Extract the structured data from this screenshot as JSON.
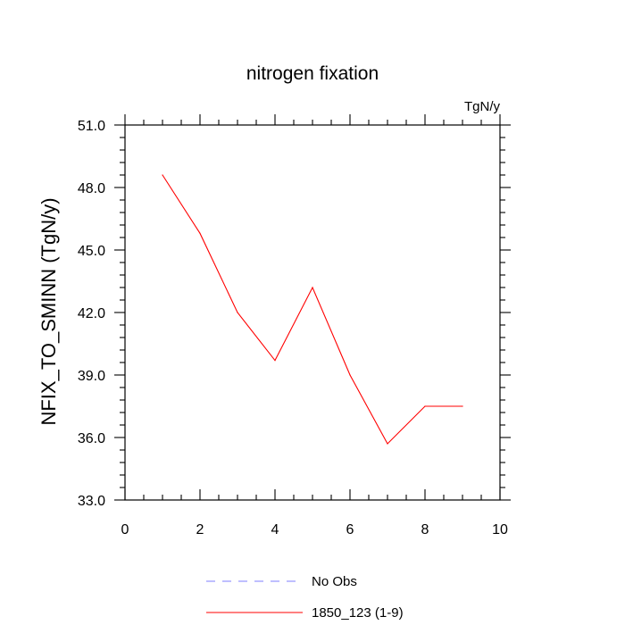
{
  "chart_data": {
    "type": "line",
    "title": "nitrogen fixation",
    "units_label": "TgN/y",
    "ylabel": "NFIX_TO_SMINN  (TgN/y)",
    "xlabel": "",
    "xlim": [
      0,
      10
    ],
    "ylim": [
      33,
      51
    ],
    "x_ticks": [
      0,
      2,
      4,
      6,
      8,
      10
    ],
    "x_tick_labels": [
      "0",
      "2",
      "4",
      "6",
      "8",
      "10"
    ],
    "y_ticks": [
      33,
      36,
      39,
      42,
      45,
      48,
      51
    ],
    "y_tick_labels": [
      "33.0",
      "36.0",
      "39.0",
      "42.0",
      "45.0",
      "48.0",
      "51.0"
    ],
    "grid": false,
    "legend_position": "bottom-center",
    "series": [
      {
        "name": "No Obs",
        "color": "#7f7fff",
        "dashed": true,
        "x": [],
        "values": []
      },
      {
        "name": "1850_123 (1-9)",
        "color": "#ff0000",
        "dashed": false,
        "x": [
          1,
          2,
          3,
          4,
          5,
          6,
          7,
          8,
          9
        ],
        "values": [
          48.6,
          45.8,
          42.0,
          39.7,
          43.2,
          39.0,
          35.7,
          37.5,
          37.5
        ]
      }
    ]
  }
}
